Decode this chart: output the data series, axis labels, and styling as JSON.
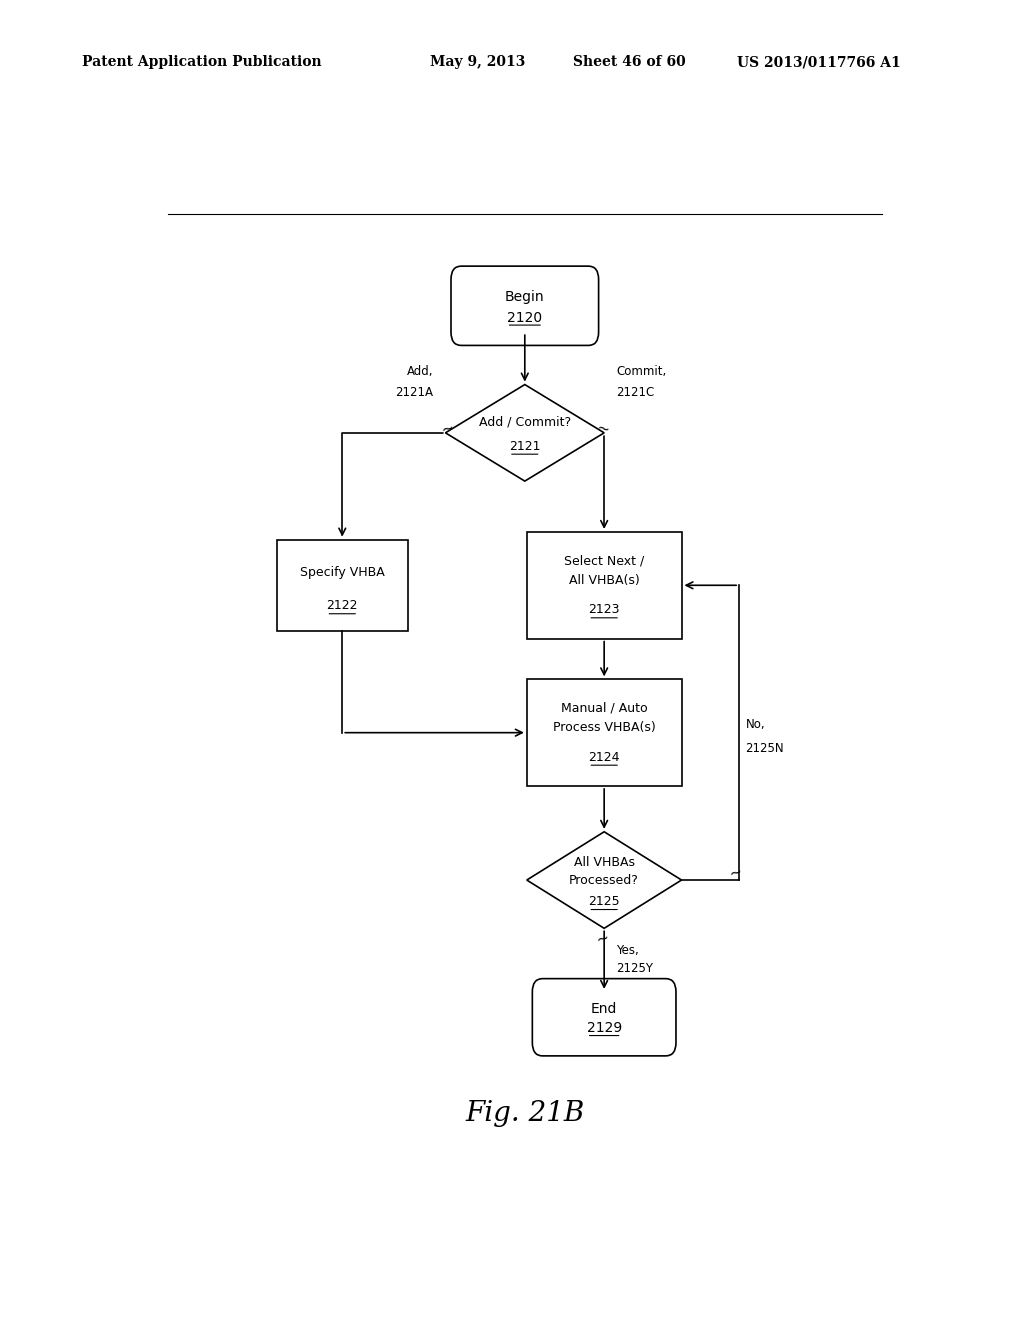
{
  "bg_color": "#ffffff",
  "header_text": "Patent Application Publication",
  "header_date": "May 9, 2013",
  "header_sheet": "Sheet 46 of 60",
  "header_patent": "US 2013/0117766 A1",
  "fig_label": "Fig. 21B"
}
